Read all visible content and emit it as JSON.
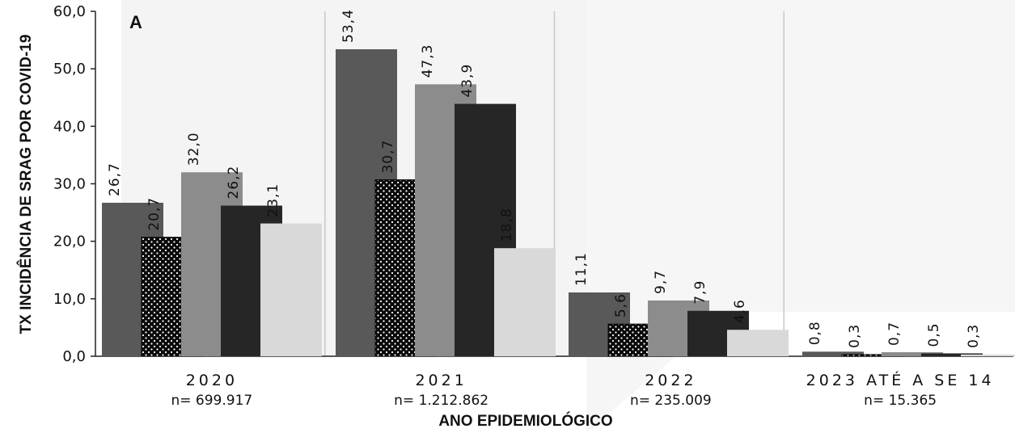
{
  "chart_data": {
    "type": "bar",
    "panel_label": "A",
    "ylabel": "TX INCIDÊNCIA DE SRAG POR COVID-19",
    "xlabel": "ANO EPIDEMIOLÓGICO",
    "ylim": [
      0,
      60
    ],
    "yticks": [
      "0,0",
      "10,0",
      "20,0",
      "30,0",
      "40,0",
      "50,0",
      "60,0"
    ],
    "categories": [
      {
        "year": "2020",
        "n": "n= 699.917"
      },
      {
        "year": "2021",
        "n": "n= 1.212.862"
      },
      {
        "year": "2022",
        "n": "n= 235.009"
      },
      {
        "year": "2023 ATÉ A SE 14",
        "n": "n= 15.365"
      }
    ],
    "series": [
      {
        "color": "#595959",
        "pattern": "solid",
        "values": [
          26.7,
          53.4,
          11.1,
          0.8
        ],
        "labels": [
          "26,7",
          "53,4",
          "11,1",
          "0,8"
        ]
      },
      {
        "color": "#0a0a0a",
        "pattern": "dotted",
        "values": [
          20.7,
          30.7,
          5.6,
          0.3
        ],
        "labels": [
          "20,7",
          "30,7",
          "5,6",
          "0,3"
        ]
      },
      {
        "color": "#8c8c8c",
        "pattern": "solid",
        "values": [
          32.0,
          47.3,
          9.7,
          0.7
        ],
        "labels": [
          "32,0",
          "47,3",
          "9,7",
          "0,7"
        ]
      },
      {
        "color": "#262626",
        "pattern": "solid",
        "values": [
          26.2,
          43.9,
          7.9,
          0.5
        ],
        "labels": [
          "26,2",
          "43,9",
          "7,9",
          "0,5"
        ]
      },
      {
        "color": "#d9d9d9",
        "pattern": "solid",
        "values": [
          23.1,
          18.8,
          4.6,
          0.3
        ],
        "labels": [
          "23,1",
          "18,8",
          "4,6",
          "0,3"
        ]
      }
    ]
  }
}
